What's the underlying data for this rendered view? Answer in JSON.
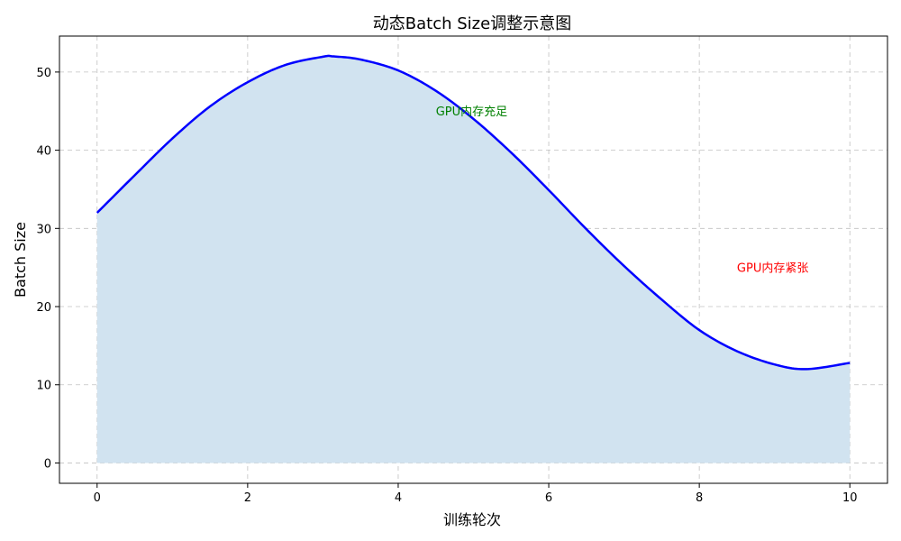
{
  "chart_data": {
    "type": "area",
    "title": "动态Batch Size调整示意图",
    "xlabel": "训练轮次",
    "ylabel": "Batch Size",
    "xlim": [
      -0.5,
      10.5
    ],
    "ylim": [
      -2.6,
      54.6
    ],
    "x_ticks": [
      0,
      2,
      4,
      6,
      8,
      10
    ],
    "y_ticks": [
      0,
      10,
      20,
      30,
      40,
      50
    ],
    "grid": true,
    "x": [
      0,
      0.5,
      1,
      1.5,
      2,
      2.5,
      3,
      3.14,
      3.5,
      4,
      4.5,
      5,
      5.5,
      6,
      6.5,
      7,
      7.5,
      8,
      8.5,
      9,
      9.42,
      10
    ],
    "series": [
      {
        "values": [
          32.0,
          36.8,
          41.5,
          45.6,
          48.7,
          50.9,
          51.96,
          52.0,
          51.6,
          50.2,
          47.6,
          44.0,
          39.7,
          34.9,
          29.9,
          25.2,
          20.9,
          17.0,
          14.3,
          12.6,
          12.0,
          12.8
        ],
        "color": "#0000ff",
        "fill_color": "#d1e3f0"
      }
    ],
    "annotations": [
      {
        "text": "GPU内存充足",
        "x": 4.5,
        "y": 45,
        "color": "#008000"
      },
      {
        "text": "GPU内存紧张",
        "x": 8.5,
        "y": 25,
        "color": "#ff0000"
      }
    ]
  }
}
